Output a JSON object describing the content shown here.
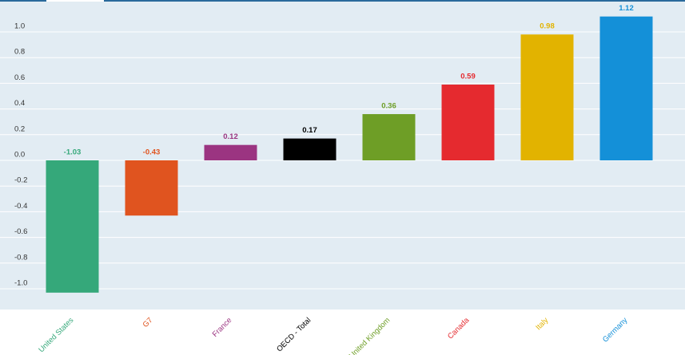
{
  "chart_data": {
    "type": "bar",
    "categories": [
      "United States",
      "G7",
      "France",
      "OECD - Total",
      "United Kingdom",
      "Canada",
      "Italy",
      "Germany"
    ],
    "values": [
      -1.03,
      -0.43,
      0.12,
      0.17,
      0.36,
      0.59,
      0.98,
      1.12
    ],
    "colors": [
      "#35a87a",
      "#e0541f",
      "#9b3481",
      "#000000",
      "#6e9e26",
      "#e52a2f",
      "#e2b300",
      "#1490d8"
    ],
    "ylim": [
      -1.2,
      1.2
    ],
    "yticks": [
      {
        "value": -1,
        "label": "-1.0"
      },
      -0.8,
      -0.6,
      -0.4,
      -0.2,
      {
        "value": 0,
        "label": "0.0"
      },
      0.2,
      0.4,
      0.6,
      0.8,
      {
        "value": 1,
        "label": "1.0"
      }
    ],
    "grid": true
  }
}
